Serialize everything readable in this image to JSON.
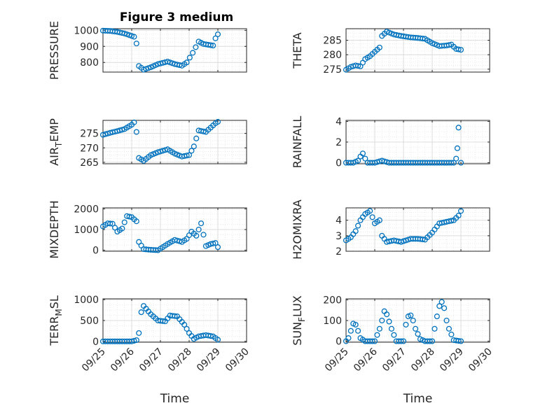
{
  "figure": {
    "title": "Figure 3 medium"
  },
  "chart_data": [
    {
      "type": "scatter",
      "ylabel": "PRESSURE",
      "xlabel": "",
      "ylim": [
        740,
        1010
      ],
      "yticks": [
        800,
        900,
        1000
      ],
      "x": [
        "09/25",
        "09/25 06:00",
        "09/25 12:00",
        "09/25 18:00",
        "09/26",
        "09/26 02:00",
        "09/26 04:00",
        "09/26 06:00",
        "09/26 10:00",
        "09/26 16:00",
        "09/26 22:00",
        "09/27 06:00",
        "09/27 12:00",
        "09/27 18:00",
        "09/27 22:00",
        "09/28 03:00",
        "09/28 08:00",
        "09/28 12:00",
        "09/28 16:00",
        "09/28 20:00",
        "09/28 22:00",
        "09/29"
      ],
      "y": [
        998,
        996,
        990,
        980,
        965,
        960,
        918,
        778,
        755,
        770,
        790,
        805,
        790,
        780,
        800,
        860,
        930,
        915,
        910,
        905,
        950,
        975
      ]
    },
    {
      "type": "scatter",
      "ylabel": "THETA",
      "xlabel": "",
      "ylim": [
        274,
        289
      ],
      "yticks": [
        275,
        280,
        285
      ],
      "x": [
        "09/25",
        "09/25 04:00",
        "09/25 08:00",
        "09/25 12:00",
        "09/25 16:00",
        "09/25 20:00",
        "09/26",
        "09/26 04:00",
        "09/26 06:00",
        "09/26 10:00",
        "09/26 16:00",
        "09/26 22:00",
        "09/27 06:00",
        "09/27 12:00",
        "09/27 18:00",
        "09/28",
        "09/28 06:00",
        "09/28 12:00",
        "09/28 16:00",
        "09/28 20:00",
        "09/29"
      ],
      "y": [
        274.8,
        275.8,
        276.3,
        276.0,
        278.5,
        279.5,
        281,
        282.5,
        286.5,
        288,
        287,
        286.5,
        286,
        285.8,
        285.5,
        284,
        283,
        283.2,
        283.5,
        282.0,
        281.7
      ]
    },
    {
      "type": "scatter",
      "ylabel": "AIR_TEMP",
      "xlabel": "",
      "ylim": [
        264.5,
        279.5
      ],
      "yticks": [
        265,
        270,
        275
      ],
      "x": [
        "09/25",
        "09/25 06:00",
        "09/25 12:00",
        "09/25 18:00",
        "09/26",
        "09/26 02:00",
        "09/26 04:00",
        "09/26 06:00",
        "09/26 10:00",
        "09/26 16:00",
        "09/26 22:00",
        "09/27 06:00",
        "09/27 12:00",
        "09/27 18:00",
        "09/28",
        "09/28 04:00",
        "09/28 08:00",
        "09/28 14:00",
        "09/28 18:00",
        "09/28 22:00",
        "09/29"
      ],
      "y": [
        274.5,
        275.2,
        275.8,
        276.5,
        278,
        278.8,
        275.5,
        266.5,
        265.5,
        267.5,
        268.5,
        269.5,
        268,
        267,
        267.5,
        270.5,
        276,
        275.5,
        277,
        278.5,
        279
      ]
    },
    {
      "type": "scatter",
      "ylabel": "RAINFALL",
      "xlabel": "",
      "ylim": [
        -0.1,
        4.1
      ],
      "yticks": [
        0,
        2,
        4
      ],
      "x": [
        "09/25",
        "09/25 06:00",
        "09/25 10:00",
        "09/25 12:00",
        "09/25 14:00",
        "09/25 16:00",
        "09/25 18:00",
        "09/26",
        "09/26 06:00",
        "09/26 12:00",
        "09/27",
        "09/27 12:00",
        "09/28",
        "09/28 12:00",
        "09/28 18:00",
        "09/28 20:00",
        "09/28 21:00",
        "09/28 22:00",
        "09/29"
      ],
      "y": [
        0,
        0,
        0.2,
        0.6,
        0.9,
        0.4,
        0,
        0,
        0.2,
        0,
        0,
        0,
        0,
        0,
        0,
        0.4,
        1.4,
        3.4,
        0
      ]
    },
    {
      "type": "scatter",
      "ylabel": "MIXDEPTH",
      "xlabel": "",
      "ylim": [
        -50,
        2050
      ],
      "yticks": [
        0,
        1000,
        2000
      ],
      "x": [
        "09/25",
        "09/25 04:00",
        "09/25 08:00",
        "09/25 12:00",
        "09/25 16:00",
        "09/25 20:00",
        "09/26",
        "09/26 04:00",
        "09/26 06:00",
        "09/26 10:00",
        "09/26 16:00",
        "09/26 22:00",
        "09/27 06:00",
        "09/27 12:00",
        "09/27 18:00",
        "09/27 22:00",
        "09/28 02:00",
        "09/28 06:00",
        "09/28 10:00",
        "09/28 14:00",
        "09/28 18:00",
        "09/28 22:00",
        "09/29"
      ],
      "y": [
        1150,
        1300,
        1280,
        900,
        1050,
        1650,
        1600,
        1400,
        400,
        50,
        20,
        0,
        300,
        500,
        400,
        550,
        900,
        700,
        1300,
        200,
        300,
        350,
        150
      ]
    },
    {
      "type": "scatter",
      "ylabel": "H2OMIXRA",
      "xlabel": "",
      "ylim": [
        2,
        4.8
      ],
      "yticks": [
        2,
        3,
        4
      ],
      "x": [
        "09/25",
        "09/25 04:00",
        "09/25 08:00",
        "09/25 12:00",
        "09/25 16:00",
        "09/25 20:00",
        "09/26",
        "09/26 04:00",
        "09/26 06:00",
        "09/26 10:00",
        "09/26 16:00",
        "09/26 22:00",
        "09/27 06:00",
        "09/27 12:00",
        "09/27 18:00",
        "09/28",
        "09/28 06:00",
        "09/28 12:00",
        "09/28 18:00",
        "09/28 22:00",
        "09/29"
      ],
      "y": [
        2.7,
        2.9,
        3.3,
        4.0,
        4.4,
        4.6,
        3.8,
        4.0,
        3.0,
        2.6,
        2.7,
        2.6,
        2.8,
        2.8,
        2.75,
        3.2,
        3.8,
        3.9,
        4.0,
        4.3,
        4.6
      ]
    },
    {
      "type": "scatter",
      "ylabel": "TERR_MSL",
      "xlabel": "Time",
      "ylim": [
        -20,
        1020
      ],
      "yticks": [
        0,
        500,
        1000
      ],
      "x": [
        "09/25",
        "09/25 12:00",
        "09/26",
        "09/26 04:00",
        "09/26 06:00",
        "09/26 08:00",
        "09/26 10:00",
        "09/26 16:00",
        "09/26 22:00",
        "09/27 04:00",
        "09/27 08:00",
        "09/27 14:00",
        "09/27 20:00",
        "09/28",
        "09/28 04:00",
        "09/28 08:00",
        "09/28 14:00",
        "09/28 20:00",
        "09/29"
      ],
      "y": [
        0,
        0,
        0,
        30,
        200,
        700,
        850,
        650,
        500,
        480,
        620,
        600,
        400,
        200,
        60,
        120,
        150,
        120,
        40
      ]
    },
    {
      "type": "scatter",
      "ylabel": "SUN_FLUX",
      "xlabel": "Time",
      "ylim": [
        -5,
        205
      ],
      "yticks": [
        0,
        100,
        200
      ],
      "x": [
        "09/25",
        "09/25 02:00",
        "09/25 04:00",
        "09/25 06:00",
        "09/25 08:00",
        "09/25 10:00",
        "09/25 12:00",
        "09/25 16:00",
        "09/26",
        "09/26 02:00",
        "09/26 04:00",
        "09/26 06:00",
        "09/26 08:00",
        "09/26 10:00",
        "09/26 14:00",
        "09/26 18:00",
        "09/27",
        "09/27 02:00",
        "09/27 04:00",
        "09/27 06:00",
        "09/27 08:00",
        "09/27 10:00",
        "09/27 14:00",
        "09/27 18:00",
        "09/28",
        "09/28 02:00",
        "09/28 04:00",
        "09/28 06:00",
        "09/28 08:00",
        "09/28 10:00",
        "09/28 12:00",
        "09/28 14:00",
        "09/28 18:00",
        "09/29"
      ],
      "y": [
        0,
        15,
        50,
        85,
        80,
        50,
        15,
        0,
        0,
        30,
        60,
        100,
        145,
        130,
        60,
        0,
        0,
        80,
        120,
        125,
        100,
        60,
        10,
        0,
        0,
        60,
        120,
        170,
        190,
        160,
        100,
        60,
        5,
        0
      ]
    }
  ],
  "axes": {
    "xticks": [
      "09/25",
      "09/26",
      "09/27",
      "09/28",
      "09/29",
      "09/30"
    ],
    "xlim": [
      "09/25",
      "09/30"
    ]
  },
  "colors": {
    "marker": "#0072bd",
    "grid": "#dcdcdc",
    "axis": "#262626"
  }
}
